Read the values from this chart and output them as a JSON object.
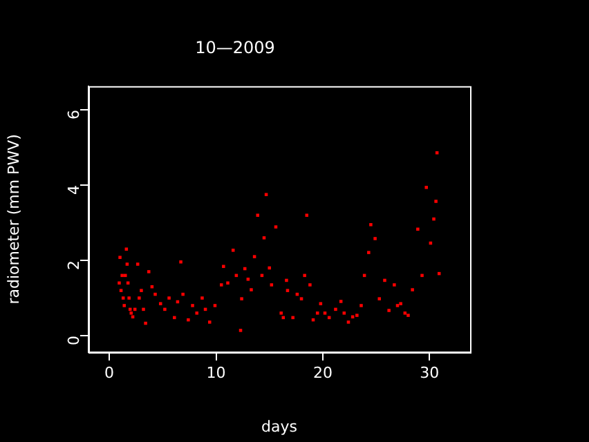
{
  "chart_data": {
    "type": "scatter",
    "title": "10—2009",
    "xlabel": "days",
    "ylabel": "radiometer (mm PWV)",
    "xlim": [
      -1.95,
      33.8
    ],
    "xticks": [
      0,
      10,
      20,
      30
    ],
    "ylim": [
      -0.44,
      6.63
    ],
    "yticks": [
      0,
      2,
      4,
      6
    ],
    "grid": false,
    "legend": false,
    "marker": "square",
    "series": [
      {
        "color": "#ff0000",
        "x": [
          0.93,
          1.0,
          1.1,
          1.2,
          1.3,
          1.4,
          1.5,
          1.6,
          1.67,
          1.75,
          1.85,
          1.95,
          2.05,
          2.2,
          2.4,
          2.66,
          2.8,
          3.0,
          3.2,
          3.4,
          3.7,
          4.0,
          4.3,
          4.8,
          5.2,
          5.6,
          6.1,
          6.4,
          6.7,
          6.9,
          7.4,
          7.8,
          8.2,
          8.7,
          9.0,
          9.4,
          9.9,
          10.5,
          10.7,
          11.1,
          11.6,
          11.9,
          12.3,
          12.4,
          12.7,
          13.0,
          13.3,
          13.6,
          13.9,
          14.3,
          14.5,
          14.7,
          15.0,
          15.2,
          15.6,
          16.1,
          16.3,
          16.6,
          16.7,
          17.2,
          17.6,
          18.0,
          18.3,
          18.5,
          18.8,
          19.1,
          19.5,
          19.8,
          20.2,
          20.6,
          21.2,
          21.7,
          22.0,
          22.4,
          22.8,
          23.2,
          23.6,
          23.9,
          24.3,
          24.5,
          24.9,
          25.3,
          25.8,
          26.2,
          26.7,
          27.0,
          27.3,
          27.7,
          28.0,
          28.4,
          28.9,
          29.3,
          29.7,
          30.1,
          30.4,
          30.6,
          30.7,
          30.9
        ],
        "values": [
          1.4,
          2.08,
          1.2,
          1.6,
          1.0,
          0.8,
          1.6,
          2.3,
          1.9,
          1.4,
          1.0,
          0.7,
          0.6,
          0.5,
          0.7,
          1.9,
          1.0,
          1.2,
          0.7,
          0.33,
          1.7,
          1.3,
          1.1,
          0.85,
          0.7,
          1.0,
          0.48,
          0.9,
          1.96,
          1.1,
          0.42,
          0.8,
          0.6,
          1.0,
          0.7,
          0.36,
          0.8,
          1.35,
          1.84,
          1.4,
          2.27,
          1.6,
          0.14,
          0.98,
          1.78,
          1.5,
          1.22,
          2.1,
          3.2,
          1.6,
          2.6,
          3.75,
          1.8,
          1.35,
          2.89,
          0.6,
          0.48,
          1.47,
          1.2,
          0.48,
          1.1,
          0.98,
          1.6,
          3.2,
          1.35,
          0.42,
          0.6,
          0.85,
          0.6,
          0.48,
          0.7,
          0.91,
          0.6,
          0.36,
          0.5,
          0.54,
          0.8,
          1.6,
          2.21,
          2.95,
          2.58,
          0.98,
          1.47,
          0.67,
          1.35,
          0.8,
          0.85,
          0.6,
          0.54,
          1.22,
          2.83,
          1.6,
          3.94,
          2.46,
          3.1,
          3.57,
          4.86,
          1.65
        ]
      }
    ]
  }
}
